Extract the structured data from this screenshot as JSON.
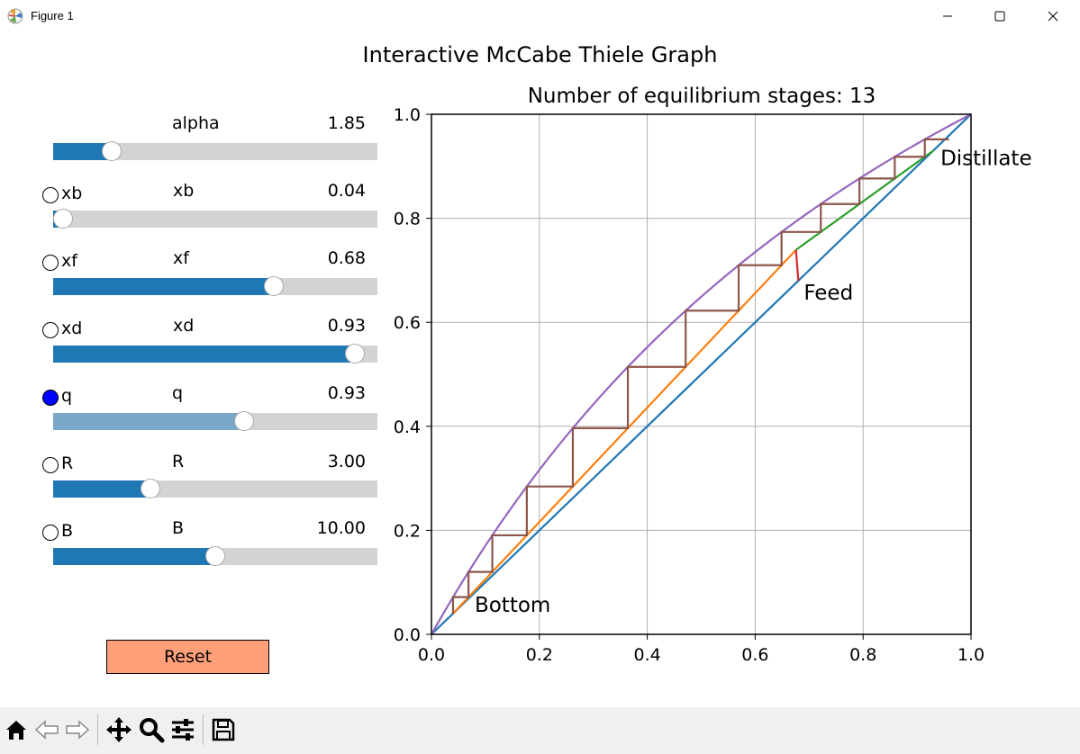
{
  "window": {
    "title": "Figure 1"
  },
  "figure": {
    "suptitle": "Interactive McCabe Thiele Graph"
  },
  "sliders": [
    {
      "key": "alpha",
      "label": "alpha",
      "value_text": "1.85",
      "fraction": 0.18,
      "radio_label": "",
      "color": "#1f77b4"
    },
    {
      "key": "xb",
      "label": "xb",
      "value_text": "0.04",
      "fraction": 0.03,
      "radio_label": "xb",
      "color": "#1f77b4"
    },
    {
      "key": "xf",
      "label": "xf",
      "value_text": "0.68",
      "fraction": 0.68,
      "radio_label": "xf",
      "color": "#1f77b4"
    },
    {
      "key": "xd",
      "label": "xd",
      "value_text": "0.93",
      "fraction": 0.93,
      "radio_label": "xd",
      "color": "#1f77b4"
    },
    {
      "key": "q",
      "label": "q",
      "value_text": "0.93",
      "fraction": 0.59,
      "radio_label": "q",
      "color": "#7aa6c8",
      "selected": true
    },
    {
      "key": "R",
      "label": "R",
      "value_text": "3.00",
      "fraction": 0.3,
      "radio_label": "R",
      "color": "#1f77b4"
    },
    {
      "key": "B",
      "label": "B",
      "value_text": "10.00",
      "fraction": 0.5,
      "radio_label": "B",
      "color": "#1f77b4"
    }
  ],
  "reset": {
    "label": "Reset",
    "color": "#ffa07a"
  },
  "chart_data": {
    "type": "line",
    "title": "Number of equilibrium stages: 13",
    "xlabel": "",
    "ylabel": "",
    "xlim": [
      0.0,
      1.0
    ],
    "ylim": [
      0.0,
      1.0
    ],
    "grid": true,
    "xticks": [
      "0.0",
      "0.2",
      "0.4",
      "0.6",
      "0.8",
      "1.0"
    ],
    "yticks": [
      "0.0",
      "0.2",
      "0.4",
      "0.6",
      "0.8",
      "1.0"
    ],
    "alpha": 1.85,
    "xb": 0.04,
    "xf": 0.68,
    "xd": 0.93,
    "q": 0.93,
    "R": 3.0,
    "B": 10.0,
    "colors": {
      "diagonal": "#1f77b4",
      "stripping": "#ff7f0e",
      "rectifying": "#2ca02c",
      "feed": "#d62728",
      "equilibrium": "#9467bd",
      "steps": "#8c564b"
    },
    "annotations": [
      {
        "text": "Distillate",
        "x": 0.93,
        "y": 0.93
      },
      {
        "text": "Feed",
        "x": 0.68,
        "y": 0.68
      },
      {
        "text": "Bottom",
        "x": 0.04,
        "y": 0.04
      }
    ]
  },
  "toolbar": {
    "buttons": [
      {
        "name": "home-button",
        "icon": "home-icon"
      },
      {
        "name": "back-button",
        "icon": "back-arrow-icon"
      },
      {
        "name": "forward-button",
        "icon": "forward-arrow-icon"
      },
      {
        "name": "pan-button",
        "icon": "move-icon"
      },
      {
        "name": "zoom-button",
        "icon": "magnifier-icon"
      },
      {
        "name": "configure-button",
        "icon": "sliders-icon"
      },
      {
        "name": "save-button",
        "icon": "floppy-icon"
      }
    ]
  }
}
